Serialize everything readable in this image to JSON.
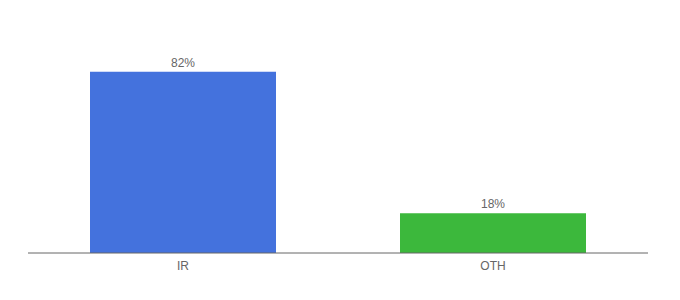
{
  "chart_data": {
    "type": "bar",
    "categories": [
      "IR",
      "OTH"
    ],
    "values": [
      82,
      18
    ],
    "colors": [
      "#4472DD",
      "#3CB83C"
    ],
    "ylim": [
      0,
      100
    ],
    "data_labels": true,
    "value_labels": [
      "82%",
      "18%"
    ],
    "tick_labels": "x",
    "grid": false
  }
}
